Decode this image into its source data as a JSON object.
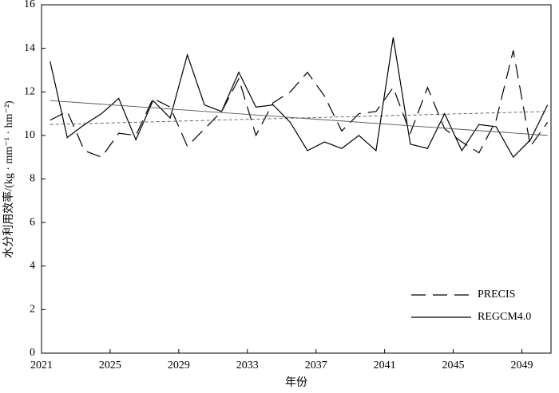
{
  "chart_data": {
    "type": "line",
    "x_label": "年份",
    "y_label": "水分利用效率/(kg · mm⁻¹ · hm⁻²)",
    "x": [
      2021.5,
      2022.5,
      2023.5,
      2024.5,
      2025.5,
      2026.5,
      2027.5,
      2028.5,
      2029.5,
      2030.5,
      2031.5,
      2032.5,
      2033.5,
      2034.5,
      2035.5,
      2036.5,
      2037.5,
      2038.5,
      2039.5,
      2040.5,
      2041.5,
      2042.5,
      2043.5,
      2044.5,
      2045.5,
      2046.5,
      2047.5,
      2048.5,
      2049.5,
      2050.5
    ],
    "series": [
      {
        "name": "PRECIS",
        "color": "#000000",
        "dash": "18,9",
        "values": [
          10.7,
          11.1,
          9.3,
          9.0,
          10.1,
          10.0,
          11.7,
          11.3,
          9.5,
          10.3,
          11.1,
          12.6,
          10.0,
          11.5,
          12.0,
          12.9,
          11.8,
          10.2,
          11.0,
          11.1,
          12.2,
          10.1,
          12.2,
          10.3,
          9.7,
          9.2,
          10.7,
          13.9,
          9.5,
          10.6
        ],
        "trend": [
          10.5,
          11.1
        ]
      },
      {
        "name": "REGCM4.0",
        "color": "#000000",
        "values": [
          13.4,
          9.9,
          10.5,
          11.0,
          11.7,
          9.8,
          11.6,
          10.8,
          13.7,
          11.4,
          11.1,
          12.9,
          11.3,
          11.4,
          10.6,
          9.3,
          9.7,
          9.4,
          10.0,
          9.3,
          14.5,
          9.6,
          9.4,
          11.0,
          9.3,
          10.5,
          10.4,
          9.0,
          9.8,
          11.4
        ],
        "trend": [
          11.6,
          10.0
        ]
      }
    ],
    "xlim": [
      2021,
      2050.7
    ],
    "xticks": [
      2021,
      2025,
      2029,
      2033,
      2037,
      2041,
      2045,
      2049
    ],
    "ylim": [
      0,
      16
    ],
    "yticks": [
      0,
      2,
      4,
      6,
      8,
      10,
      12,
      14,
      16
    ]
  }
}
